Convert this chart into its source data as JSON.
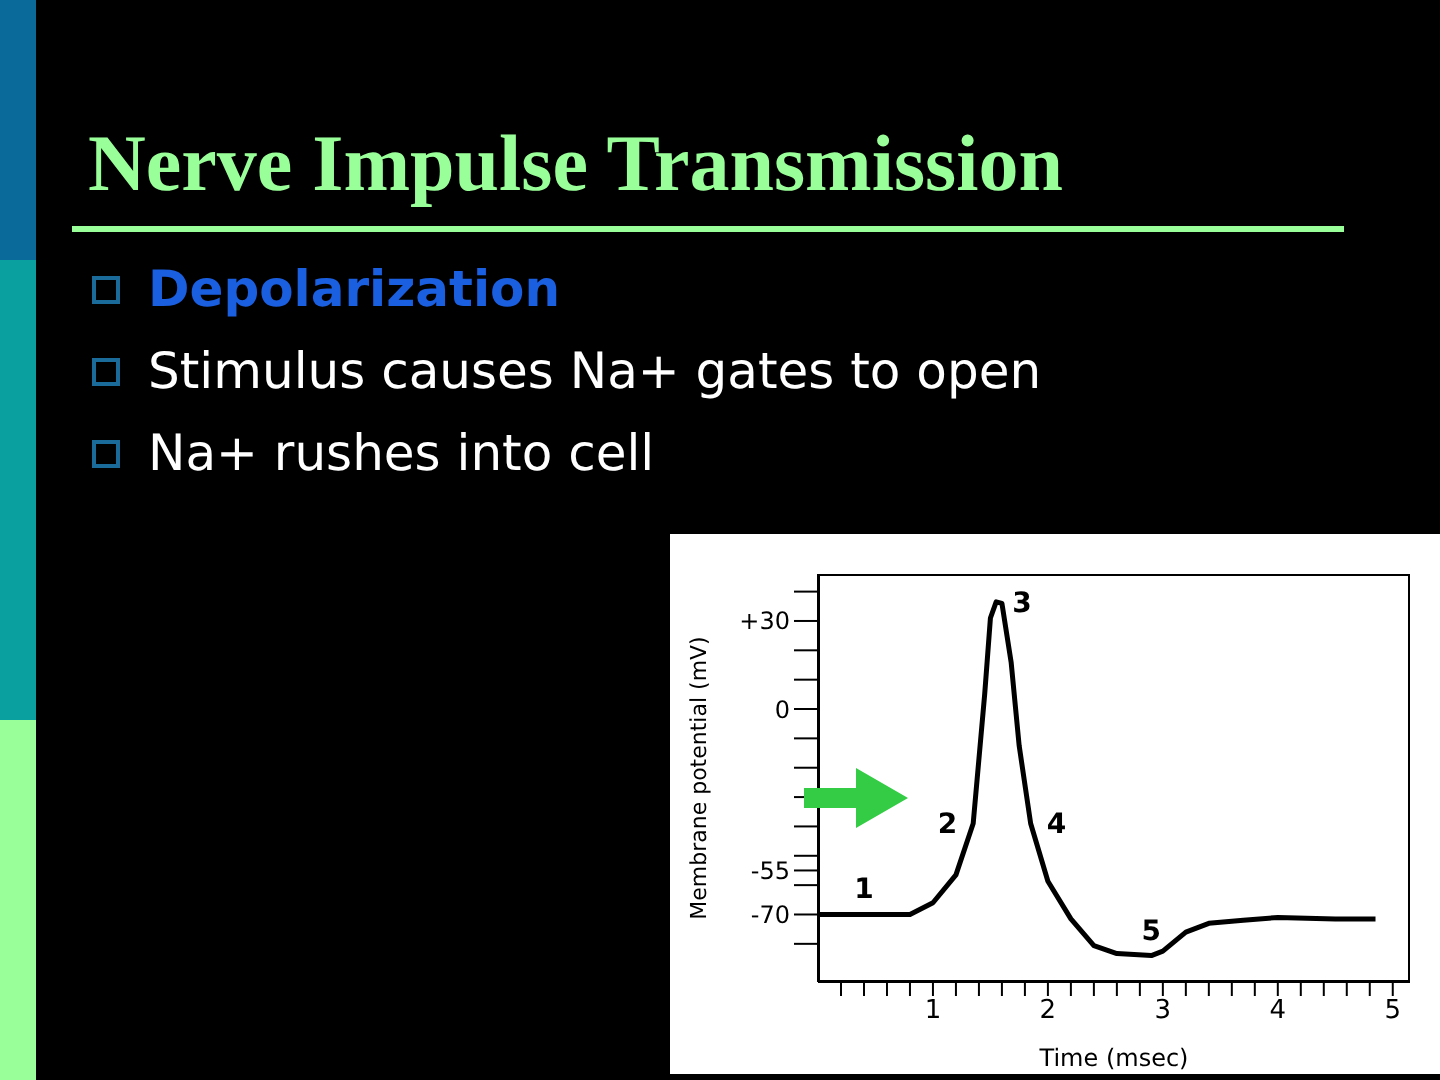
{
  "chart_data": {
    "type": "line",
    "title": "Nerve Impulse Transmission",
    "annotations": [
      "Depolarization",
      "Stimulus causes Na+ gates to open",
      "Na+ rushes into cell",
      {
        "text": "1",
        "x": 0.4,
        "y": -70
      },
      {
        "text": "2",
        "x": 1.35,
        "y": -39
      },
      {
        "text": "3",
        "x": 1.55,
        "y": 36.5
      },
      {
        "text": "4",
        "x": 1.85,
        "y": -39
      },
      {
        "text": "5",
        "x": 2.9,
        "y": -84
      }
    ],
    "xlabel": "Time (msec)",
    "ylabel": "Membrane potential (mV)",
    "x": [
      0,
      0.4,
      0.8,
      1.0,
      1.2,
      1.35,
      1.45,
      1.5,
      1.55,
      1.6,
      1.68,
      1.75,
      1.85,
      2.0,
      2.2,
      2.4,
      2.6,
      2.9,
      3.0,
      3.2,
      3.4,
      3.7,
      4.0,
      4.5,
      4.85
    ],
    "series": [
      {
        "color": "#000000",
        "values": [
          -70,
          -70,
          -70,
          -66,
          -56.5,
          -39,
          5,
          31,
          36.5,
          36,
          16,
          -12.5,
          -39,
          -58.7,
          -71.5,
          -80.6,
          -83.3,
          -84,
          -82.5,
          -76,
          -73,
          -72,
          -71,
          -71.5,
          -71.5
        ]
      }
    ],
    "xlim": [
      0,
      5.15
    ],
    "ylim": [
      -93,
      46
    ],
    "xticks": [
      {
        "value": 0.2,
        "label": null
      },
      {
        "value": 0.4,
        "label": null
      },
      {
        "value": 0.6,
        "label": null
      },
      {
        "value": 0.8,
        "label": null
      },
      1,
      {
        "value": 1.2,
        "label": null
      },
      {
        "value": 1.4,
        "label": null
      },
      {
        "value": 1.6,
        "label": null
      },
      {
        "value": 1.8,
        "label": null
      },
      2,
      {
        "value": 2.2,
        "label": null
      },
      {
        "value": 2.4,
        "label": null
      },
      {
        "value": 2.6,
        "label": null
      },
      {
        "value": 2.8,
        "label": null
      },
      3,
      {
        "value": 3.2,
        "label": null
      },
      {
        "value": 3.4,
        "label": null
      },
      {
        "value": 3.6,
        "label": null
      },
      {
        "value": 3.8,
        "label": null
      },
      4,
      {
        "value": 4.2,
        "label": null
      },
      {
        "value": 4.4,
        "label": null
      },
      {
        "value": 4.6,
        "label": null
      },
      {
        "value": 4.8,
        "label": null
      },
      5
    ],
    "yticks": [
      {
        "value": 40,
        "label": null
      },
      {
        "value": 30,
        "label": "+30"
      },
      {
        "value": 20,
        "label": null
      },
      {
        "value": 10,
        "label": null
      },
      0,
      {
        "value": -10,
        "label": null
      },
      {
        "value": -20,
        "label": null
      },
      {
        "value": -30,
        "label": null
      },
      {
        "value": -40,
        "label": null
      },
      {
        "value": -50,
        "label": null
      },
      -55,
      {
        "value": -60,
        "label": null
      },
      -70,
      {
        "value": -80,
        "label": null
      }
    ],
    "grid": false,
    "legend": false,
    "marker": "none"
  }
}
